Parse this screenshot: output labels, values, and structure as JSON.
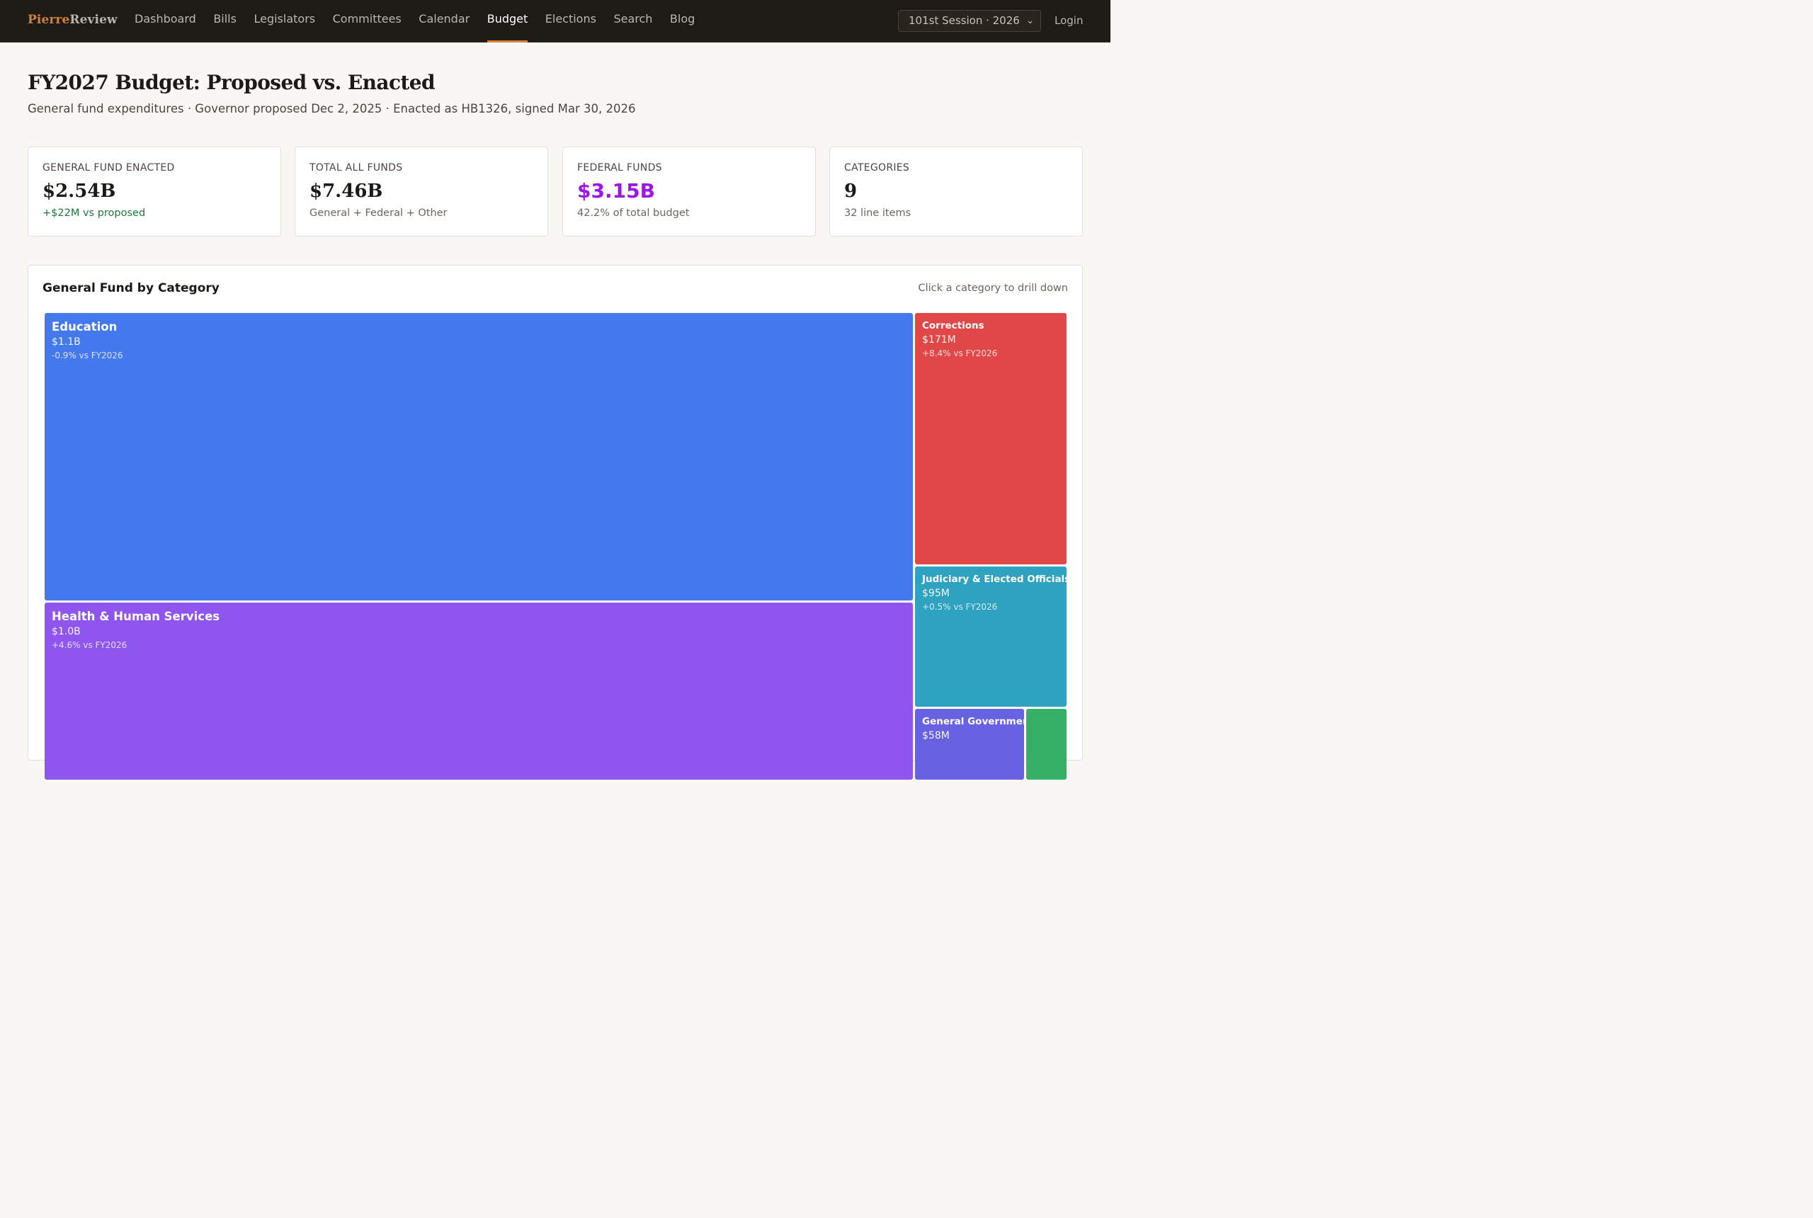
{
  "nav": {
    "brand_a": "Pierre",
    "brand_b": "Review",
    "links": [
      "Dashboard",
      "Bills",
      "Legislators",
      "Committees",
      "Calendar",
      "Budget",
      "Elections",
      "Search",
      "Blog"
    ],
    "active": "Budget",
    "session": "101st Session · 2026",
    "login": "Login"
  },
  "header": {
    "title": "FY2027 Budget: Proposed vs. Enacted",
    "subtitle": "General fund expenditures · Governor proposed Dec 2, 2025 · Enacted as HB1326, signed Mar 30, 2026"
  },
  "stats": [
    {
      "label": "GENERAL FUND ENACTED",
      "value": "$2.54B",
      "note": "+$22M vs proposed",
      "note_style": "positive"
    },
    {
      "label": "TOTAL ALL FUNDS",
      "value": "$7.46B",
      "note": "General + Federal + Other",
      "note_style": "neutral"
    },
    {
      "label": "FEDERAL FUNDS",
      "value": "$3.15B",
      "note": "42.2% of total budget",
      "note_style": "neutral",
      "accent": "#9b16e8"
    },
    {
      "label": "CATEGORIES",
      "value": "9",
      "note": "32 line items",
      "note_style": "neutral"
    }
  ],
  "treemap": {
    "title": "General Fund by Category",
    "hint": "Click a category to drill down",
    "categories": [
      {
        "name": "Education",
        "amount": "$1.1B",
        "change": "-0.9% vs FY2026",
        "color": "#4479ed"
      },
      {
        "name": "Health & Human Services",
        "amount": "$1.0B",
        "change": "+4.6% vs FY2026",
        "color": "#8f56ef"
      },
      {
        "name": "Corrections",
        "amount": "$171M",
        "change": "+8.4% vs FY2026",
        "color": "#e04848"
      },
      {
        "name": "Judiciary & Elected Officials",
        "amount": "$95M",
        "change": "+0.5% vs FY2026",
        "color": "#2ea2bf"
      },
      {
        "name": "General Government",
        "amount": "$58M",
        "change": "",
        "color": "#6762e2"
      },
      {
        "name": "",
        "amount": "",
        "change": "",
        "color": "#36b066"
      }
    ]
  }
}
